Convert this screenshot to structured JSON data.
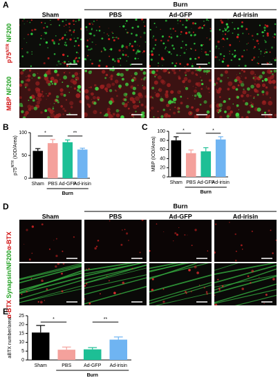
{
  "panel_a": {
    "label": "A",
    "burn": "Burn",
    "columns": [
      "Sham",
      "PBS",
      "Ad-GFP",
      "Ad-irisin"
    ],
    "rows": [
      {
        "marker": "p75",
        "marker_sup": "NTR",
        "counterstain": "NF200"
      },
      {
        "marker": "MBP",
        "counterstain": "NF200"
      }
    ]
  },
  "panel_d": {
    "label": "D",
    "burn": "Burn",
    "columns": [
      "Sham",
      "PBS",
      "Ad-GFP",
      "Ad-irisin"
    ],
    "rows": [
      {
        "marker": "α-BTX"
      },
      {
        "marker": "α-BTX",
        "counterstain": "Synapsin/NF200"
      }
    ]
  },
  "chart_data": [
    {
      "type": "bar",
      "panel": "B",
      "ylabel": "p75",
      "ylabel_sup": "NTR",
      "ylabel_rest": " (IOD/Area)",
      "categories": [
        "Sham",
        "PBS",
        "Ad-GFP",
        "Ad-irisin"
      ],
      "values": [
        60,
        77,
        79,
        63
      ],
      "errors": [
        5,
        8,
        5,
        3
      ],
      "colors": [
        "#000000",
        "#f4a19c",
        "#1dbf95",
        "#6fb4f2"
      ],
      "ylim": [
        0,
        100
      ],
      "yticks": [
        0,
        50,
        100
      ],
      "group_label": "Burn",
      "annotations": [
        {
          "text": "*",
          "between": [
            "Sham",
            "PBS"
          ]
        },
        {
          "text": "**",
          "between": [
            "Ad-GFP",
            "Ad-irisin"
          ]
        }
      ]
    },
    {
      "type": "bar",
      "panel": "C",
      "ylabel": "MBP (IOD/Area)",
      "categories": [
        "Sham",
        "PBS",
        "Ad-GFP",
        "Ad-irisin"
      ],
      "values": [
        80,
        52,
        56,
        82
      ],
      "errors": [
        8,
        7,
        8,
        6
      ],
      "colors": [
        "#000000",
        "#f4a19c",
        "#1dbf95",
        "#6fb4f2"
      ],
      "ylim": [
        0,
        100
      ],
      "yticks": [
        0,
        20,
        40,
        60,
        80,
        100
      ],
      "group_label": "Burn",
      "annotations": [
        {
          "text": "*",
          "between": [
            "Sham",
            "PBS"
          ]
        },
        {
          "text": "*",
          "between": [
            "Ad-GFP",
            "Ad-irisin"
          ]
        }
      ]
    },
    {
      "type": "bar",
      "panel": "E",
      "ylabel": "aBTX number/area",
      "categories": [
        "Sham",
        "PBS",
        "Ad-GFP",
        "Ad-irisin"
      ],
      "values": [
        15.5,
        5.8,
        6,
        11.5
      ],
      "errors": [
        4,
        1.5,
        1,
        1.5
      ],
      "colors": [
        "#000000",
        "#f4a19c",
        "#1dbf95",
        "#6fb4f2"
      ],
      "ylim": [
        0,
        25
      ],
      "yticks": [
        0,
        5,
        10,
        15,
        20,
        25
      ],
      "group_label": "Burn",
      "annotations": [
        {
          "text": "*",
          "between": [
            "Sham",
            "PBS"
          ]
        },
        {
          "text": "**",
          "between": [
            "Ad-GFP",
            "Ad-irisin"
          ]
        }
      ]
    }
  ]
}
